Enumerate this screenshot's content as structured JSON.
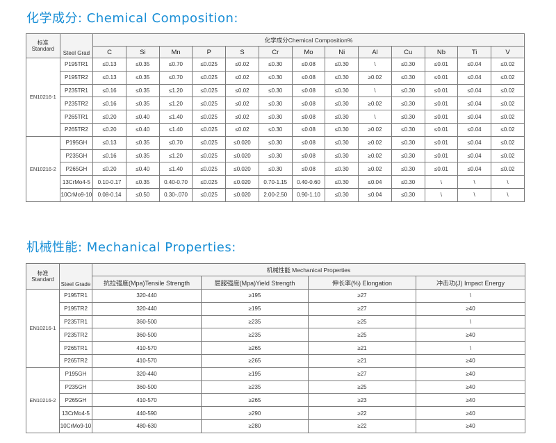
{
  "chem": {
    "title": "化学成分: Chemical Composition:",
    "standard_label_cn": "标准",
    "standard_label_en": "Standard",
    "grade_label": "Steel Grad",
    "header": "化学成分Chemical Composition%",
    "elements": [
      "C",
      "Si",
      "Mn",
      "P",
      "S",
      "Cr",
      "Mo",
      "Ni",
      "Al",
      "Cu",
      "Nb",
      "Ti",
      "V"
    ],
    "groups": [
      {
        "standard": "EN10216-1",
        "rows": [
          {
            "grade": "P195TR1",
            "values": [
              "≤0.13",
              "≤0.35",
              "≤0.70",
              "≤0.025",
              "≤0.02",
              "≤0.30",
              "≤0.08",
              "≤0.30",
              "\\",
              "≤0.30",
              "≤0.01",
              "≤0.04",
              "≤0.02"
            ]
          },
          {
            "grade": "P195TR2",
            "values": [
              "≤0.13",
              "≤0.35",
              "≤0.70",
              "≤0.025",
              "≤0.02",
              "≤0.30",
              "≤0.08",
              "≤0.30",
              "≥0.02",
              "≤0.30",
              "≤0.01",
              "≤0.04",
              "≤0.02"
            ]
          },
          {
            "grade": "P235TR1",
            "values": [
              "≤0.16",
              "≤0.35",
              "≤1.20",
              "≤0.025",
              "≤0.02",
              "≤0.30",
              "≤0.08",
              "≤0.30",
              "\\",
              "≤0.30",
              "≤0.01",
              "≤0.04",
              "≤0.02"
            ]
          },
          {
            "grade": "P235TR2",
            "values": [
              "≤0.16",
              "≤0.35",
              "≤1.20",
              "≤0.025",
              "≤0.02",
              "≤0.30",
              "≤0.08",
              "≤0.30",
              "≥0.02",
              "≤0.30",
              "≤0.01",
              "≤0.04",
              "≤0.02"
            ]
          },
          {
            "grade": "P265TR1",
            "values": [
              "≤0.20",
              "≤0.40",
              "≤1.40",
              "≤0.025",
              "≤0.02",
              "≤0.30",
              "≤0.08",
              "≤0.30",
              "\\",
              "≤0.30",
              "≤0.01",
              "≤0.04",
              "≤0.02"
            ]
          },
          {
            "grade": "P265TR2",
            "values": [
              "≤0.20",
              "≤0.40",
              "≤1.40",
              "≤0.025",
              "≤0.02",
              "≤0.30",
              "≤0.08",
              "≤0.30",
              "≥0.02",
              "≤0.30",
              "≤0.01",
              "≤0.04",
              "≤0.02"
            ]
          }
        ]
      },
      {
        "standard": "EN10216-2",
        "rows": [
          {
            "grade": "P195GH",
            "values": [
              "≤0.13",
              "≤0.35",
              "≤0.70",
              "≤0.025",
              "≤0.020",
              "≤0.30",
              "≤0.08",
              "≤0.30",
              "≥0.02",
              "≤0.30",
              "≤0.01",
              "≤0.04",
              "≤0.02"
            ]
          },
          {
            "grade": "P235GH",
            "values": [
              "≤0.16",
              "≤0.35",
              "≤1.20",
              "≤0.025",
              "≤0.020",
              "≤0.30",
              "≤0.08",
              "≤0.30",
              "≥0.02",
              "≤0.30",
              "≤0.01",
              "≤0.04",
              "≤0.02"
            ]
          },
          {
            "grade": "P265GH",
            "values": [
              "≤0.20",
              "≤0.40",
              "≤1.40",
              "≤0.025",
              "≤0.020",
              "≤0.30",
              "≤0.08",
              "≤0.30",
              "≥0.02",
              "≤0.30",
              "≤0.01",
              "≤0.04",
              "≤0.02"
            ]
          },
          {
            "grade": "13CrMo4-5",
            "values": [
              "0.10-0.17",
              "≤0.35",
              "0.40-0.70",
              "≤0.025",
              "≤0.020",
              "0.70-1.15",
              "0.40-0.60",
              "≤0.30",
              "≤0.04",
              "≤0.30",
              "\\",
              "\\",
              "\\"
            ]
          },
          {
            "grade": "10CrMo9-10",
            "values": [
              "0.08-0.14",
              "≤0.50",
              "0.30-.070",
              "≤0.025",
              "≤0.020",
              "2.00-2.50",
              "0.90-1.10",
              "≤0.30",
              "≤0.04",
              "≤0.30",
              "\\",
              "\\",
              "\\"
            ]
          }
        ]
      }
    ]
  },
  "mech": {
    "title": "机械性能: Mechanical Properties:",
    "standard_label_cn": "标准",
    "standard_label_en": "Standard",
    "grade_label": "Steel Grade",
    "header": "机械性能 Mechanical Properties",
    "columns": [
      "抗拉强度(Mpa)Tensile Strength",
      "屈服强度(Mpa)Yield Strength",
      "伸长率(%) Elongation",
      "冲击功(J) Impact Energy"
    ],
    "groups": [
      {
        "standard": "EN10216-1",
        "rows": [
          {
            "grade": "P195TR1",
            "values": [
              "320-440",
              "≥195",
              "≥27",
              "\\"
            ]
          },
          {
            "grade": "P195TR2",
            "values": [
              "320-440",
              "≥195",
              "≥27",
              "≥40"
            ]
          },
          {
            "grade": "P235TR1",
            "values": [
              "360-500",
              "≥235",
              "≥25",
              "\\"
            ]
          },
          {
            "grade": "P235TR2",
            "values": [
              "360-500",
              "≥235",
              "≥25",
              "≥40"
            ]
          },
          {
            "grade": "P265TR1",
            "values": [
              "410-570",
              "≥265",
              "≥21",
              "\\"
            ]
          },
          {
            "grade": "P265TR2",
            "values": [
              "410-570",
              "≥265",
              "≥21",
              "≥40"
            ]
          }
        ]
      },
      {
        "standard": "EN10216-2",
        "rows": [
          {
            "grade": "P195GH",
            "values": [
              "320-440",
              "≥195",
              "≥27",
              "≥40"
            ]
          },
          {
            "grade": "P235GH",
            "values": [
              "360-500",
              "≥235",
              "≥25",
              "≥40"
            ]
          },
          {
            "grade": "P265GH",
            "values": [
              "410-570",
              "≥265",
              "≥23",
              "≥40"
            ]
          },
          {
            "grade": "13CrMo4-5",
            "values": [
              "440-590",
              "≥290",
              "≥22",
              "≥40"
            ]
          },
          {
            "grade": "10CrMo9-10",
            "values": [
              "480-630",
              "≥280",
              "≥22",
              "≥40"
            ]
          }
        ]
      }
    ]
  }
}
